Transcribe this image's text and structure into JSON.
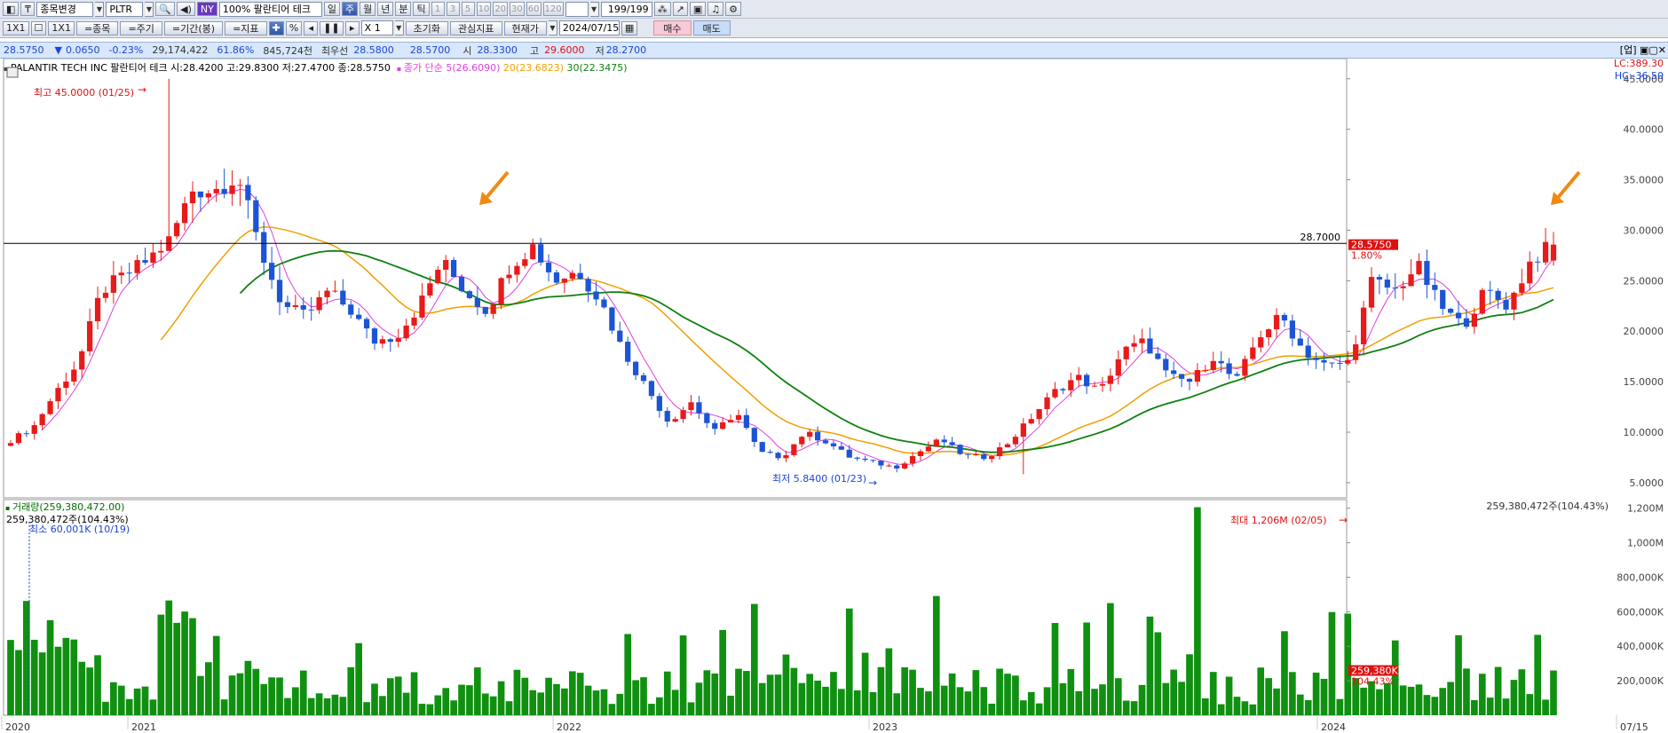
{
  "toolbar1": {
    "stock_change": "종목변경",
    "code": "PLTR",
    "market": "NY",
    "zoom": "100%",
    "name": "팔란티어 테크",
    "periods": [
      "일",
      "주",
      "월",
      "년",
      "분",
      "틱"
    ],
    "active_period": "주",
    "intervals": [
      "1",
      "3",
      "5",
      "10",
      "20",
      "30",
      "60",
      "120"
    ],
    "count_value": "199",
    "count_total": "/199"
  },
  "toolbar2": {
    "layout": "1X1",
    "layout2": "1X1",
    "btn_item": "=종목",
    "btn_cycle": "=주기",
    "btn_range": "=기간(봉)",
    "btn_indicator": "=지표",
    "percent": "%",
    "multiplier": "X 1",
    "reset": "초기화",
    "watch_indicator": "관심지표",
    "current_price": "현재가",
    "date": "2024/07/15",
    "buy": "매수",
    "sell": "매도"
  },
  "quote": {
    "price": "28.5750",
    "arrow": "▼",
    "change": "0.0650",
    "change_pct": "-0.23%",
    "volume": "29,174,422",
    "vol_ratio": "61.86%",
    "amount": "845,724천",
    "best_ask_label": "최우선",
    "best_ask": "28.5800",
    "best_bid": "28.5700",
    "open_label": "시",
    "open": "28.3300",
    "high_label": "고",
    "high": "29.6000",
    "low_label": "저",
    "low": "28.2700"
  },
  "window_corner": "[업]",
  "price_panel": {
    "header_name": "PALANTIR TECH INC 팔란티어 테크 시:28.4200 고:29.8300 저:27.4700 종:28.5750",
    "ma_title": "종가 단순",
    "ma5": "5(26.6090)",
    "ma20": "20(23.6823)",
    "ma30": "30(22.3475)",
    "lc": "LC:389.30",
    "hc": "HC:-36.50",
    "max_label": "최고 45.0000 (01/25)",
    "min_label": "최저 5.8400 (01/23)",
    "hline_label": "28.7000",
    "last_badge": "28.5750",
    "last_pct": "1.80%"
  },
  "volume_panel": {
    "title": "거래량(259,380,472.00)",
    "sub": "259,380,472주(104.43%)",
    "right_label": "259,380,472주(104.43%)",
    "min_label": "최소 60,001K (10/19)",
    "max_label": "최대 1,206M (02/05)",
    "last_badge": "259,380K",
    "last_pct": "104.43%"
  },
  "x_axis": {
    "labels": [
      "2020",
      "2021",
      "2022",
      "2023",
      "2024",
      "07/15"
    ]
  },
  "colors": {
    "up": "#e81a1a",
    "down": "#1c55d4",
    "ma5": "#e040e0",
    "ma20": "#f0a000",
    "ma30": "#108010",
    "volume": "#109010",
    "arrow": "#f08a10"
  },
  "chart_data": {
    "type": "candlestick",
    "period": "weekly",
    "x_range": [
      "2020-10",
      "2024-07-15"
    ],
    "price_axis": {
      "ticks": [
        5,
        10,
        15,
        20,
        25,
        30,
        35,
        40,
        45
      ],
      "tick_labels": [
        "5.0000",
        "10.0000",
        "15.0000",
        "20.0000",
        "25.0000",
        "30.0000",
        "35.0000",
        "40.0000",
        "45.0000"
      ],
      "ylim": [
        3.5,
        47
      ]
    },
    "volume_axis": {
      "ticks": [
        200,
        400,
        600,
        800,
        1000,
        1200
      ],
      "tick_labels": [
        "200,000K",
        "400,000K",
        "600,000K",
        "800,000K",
        "1,000M",
        "1,200M"
      ],
      "ylim": [
        0,
        1250
      ]
    },
    "series": [
      {
        "name": "price",
        "ohlc_sample": [
          [
            9.5,
            10.0,
            9.0,
            9.2
          ],
          [
            9.2,
            10.8,
            9.0,
            10.5
          ],
          [
            10.5,
            14.5,
            10.2,
            14.0
          ],
          [
            14.0,
            17.5,
            13.5,
            17.0
          ],
          [
            17.0,
            25.0,
            16.5,
            24.0
          ],
          [
            24.0,
            31.5,
            23.0,
            25.5
          ],
          [
            25.5,
            28.0,
            22.5,
            27.0
          ],
          [
            27.0,
            30.5,
            26.0,
            29.0
          ],
          [
            29.0,
            35.5,
            28.0,
            34.0
          ],
          [
            33.0,
            45.0,
            31.0,
            34.0
          ],
          [
            34.0,
            39.0,
            32.5,
            35.5
          ],
          [
            29.0,
            29.5,
            21.5,
            28.0
          ],
          [
            28.0,
            28.5,
            20.5,
            22.5
          ],
          [
            22.5,
            24.0,
            20.0,
            21.5
          ],
          [
            21.5,
            26.0,
            21.0,
            24.0
          ],
          [
            24.0,
            25.0,
            21.0,
            22.0
          ],
          [
            22.0,
            23.5,
            18.0,
            19.0
          ],
          [
            19.0,
            20.0,
            17.0,
            19.5
          ],
          [
            19.5,
            23.5,
            19.0,
            22.5
          ],
          [
            22.5,
            27.5,
            22.0,
            27.0
          ],
          [
            27.0,
            27.5,
            23.0,
            24.0
          ],
          [
            24.0,
            26.5,
            20.5,
            22.0
          ],
          [
            22.0,
            27.0,
            21.5,
            26.5
          ],
          [
            26.5,
            29.3,
            25.0,
            28.5
          ],
          [
            28.5,
            29.0,
            24.5,
            25.0
          ],
          [
            25.0,
            27.0,
            23.0,
            26.0
          ],
          [
            26.0,
            26.5,
            22.0,
            23.0
          ],
          [
            23.0,
            23.5,
            17.5,
            18.0
          ],
          [
            18.0,
            19.0,
            14.0,
            14.5
          ],
          [
            14.5,
            15.0,
            10.5,
            11.0
          ],
          [
            11.0,
            14.5,
            10.0,
            13.0
          ],
          [
            13.0,
            13.5,
            9.0,
            10.0
          ],
          [
            10.0,
            12.5,
            9.5,
            12.0
          ],
          [
            12.0,
            13.0,
            7.5,
            8.0
          ],
          [
            8.0,
            9.0,
            6.5,
            7.5
          ],
          [
            7.5,
            10.5,
            7.0,
            10.0
          ],
          [
            10.0,
            11.5,
            8.5,
            9.0
          ],
          [
            9.0,
            9.5,
            6.5,
            7.5
          ],
          [
            7.5,
            8.5,
            6.5,
            7.0
          ],
          [
            7.0,
            8.0,
            5.84,
            6.5
          ],
          [
            6.5,
            8.5,
            6.3,
            8.0
          ],
          [
            8.0,
            9.5,
            7.5,
            9.3
          ],
          [
            9.3,
            9.5,
            7.3,
            7.7
          ],
          [
            7.7,
            8.0,
            7.0,
            7.5
          ],
          [
            7.5,
            9.5,
            7.5,
            9.0
          ],
          [
            9.0,
            12.0,
            8.8,
            11.5
          ],
          [
            11.5,
            14.5,
            11.0,
            14.0
          ],
          [
            14.0,
            16.0,
            13.0,
            15.5
          ],
          [
            15.5,
            17.0,
            13.0,
            14.0
          ],
          [
            14.0,
            19.5,
            13.5,
            18.0
          ],
          [
            18.0,
            20.0,
            16.5,
            19.0
          ],
          [
            19.0,
            19.5,
            14.5,
            15.5
          ],
          [
            15.5,
            16.5,
            13.5,
            15.0
          ],
          [
            15.0,
            18.0,
            14.0,
            17.5
          ],
          [
            17.5,
            19.0,
            14.5,
            15.0
          ],
          [
            15.0,
            20.0,
            14.5,
            19.5
          ],
          [
            19.5,
            22.0,
            19.0,
            21.5
          ],
          [
            21.5,
            21.8,
            17.5,
            18.0
          ],
          [
            18.0,
            18.5,
            16.0,
            16.5
          ],
          [
            16.5,
            17.5,
            15.8,
            17.0
          ],
          [
            17.0,
            25.5,
            16.5,
            25.0
          ],
          [
            25.0,
            26.0,
            23.5,
            24.0
          ],
          [
            24.0,
            27.5,
            23.0,
            26.5
          ],
          [
            26.5,
            27.0,
            22.0,
            22.5
          ],
          [
            22.5,
            24.5,
            20.0,
            20.5
          ],
          [
            20.5,
            24.5,
            20.0,
            24.0
          ],
          [
            24.0,
            25.5,
            22.0,
            22.5
          ],
          [
            22.5,
            27.5,
            22.3,
            27.0
          ],
          [
            27.0,
            29.8,
            26.5,
            28.6
          ]
        ]
      },
      {
        "name": "5",
        "values_note": "26.6090 latest"
      },
      {
        "name": "20",
        "values_note": "23.6823 latest"
      },
      {
        "name": "30",
        "values_note": "22.3475 latest"
      }
    ],
    "hline": 28.7,
    "last_close": 28.575,
    "max": {
      "value": 45.0,
      "date": "01/25"
    },
    "min": {
      "value": 5.84,
      "date": "01/23"
    },
    "volume_max": {
      "value_m": 1206,
      "date": "02/05"
    },
    "volume_min": {
      "value_k": 60001,
      "date": "10/19"
    },
    "volume_last_k": 259380
  }
}
